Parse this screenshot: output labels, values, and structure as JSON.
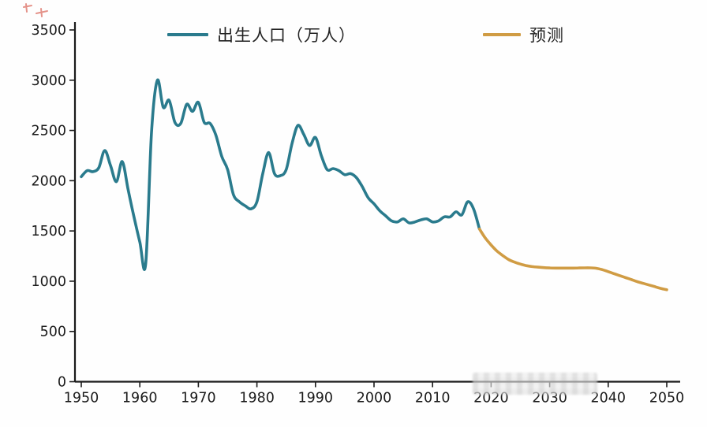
{
  "chart_data": {
    "type": "line",
    "title": "",
    "xlabel": "",
    "ylabel": "",
    "xlim": [
      1950,
      2050
    ],
    "ylim": [
      0,
      3500
    ],
    "x_ticks": [
      1950,
      1960,
      1970,
      1980,
      1990,
      2000,
      2010,
      2020,
      2030,
      2040,
      2050
    ],
    "y_ticks": [
      0,
      500,
      1000,
      1500,
      2000,
      2500,
      3000,
      3500
    ],
    "grid": false,
    "legend_position": "top",
    "series": [
      {
        "name": "出生人口（万人）",
        "color": "#2a7b8d",
        "x": [
          1950,
          1951,
          1952,
          1953,
          1954,
          1955,
          1956,
          1957,
          1958,
          1959,
          1960,
          1961,
          1962,
          1963,
          1964,
          1965,
          1966,
          1967,
          1968,
          1969,
          1970,
          1971,
          1972,
          1973,
          1974,
          1975,
          1976,
          1977,
          1978,
          1979,
          1980,
          1981,
          1982,
          1983,
          1984,
          1985,
          1986,
          1987,
          1988,
          1989,
          1990,
          1991,
          1992,
          1993,
          1994,
          1995,
          1996,
          1997,
          1998,
          1999,
          2000,
          2001,
          2002,
          2003,
          2004,
          2005,
          2006,
          2007,
          2008,
          2009,
          2010,
          2011,
          2012,
          2013,
          2014,
          2015,
          2016,
          2017,
          2018
        ],
        "values": [
          2040,
          2100,
          2090,
          2130,
          2300,
          2150,
          1990,
          2190,
          1910,
          1640,
          1390,
          1170,
          2480,
          3000,
          2730,
          2800,
          2580,
          2570,
          2760,
          2690,
          2780,
          2580,
          2570,
          2450,
          2240,
          2110,
          1860,
          1790,
          1750,
          1720,
          1790,
          2070,
          2280,
          2070,
          2050,
          2110,
          2370,
          2550,
          2460,
          2350,
          2430,
          2250,
          2110,
          2120,
          2100,
          2060,
          2070,
          2030,
          1940,
          1830,
          1770,
          1700,
          1650,
          1600,
          1590,
          1620,
          1580,
          1590,
          1610,
          1620,
          1590,
          1600,
          1640,
          1640,
          1690,
          1660,
          1790,
          1720,
          1520
        ]
      },
      {
        "name": "预测",
        "color": "#d09c44",
        "x": [
          2018,
          2019,
          2020,
          2021,
          2022,
          2023,
          2024,
          2025,
          2026,
          2027,
          2028,
          2029,
          2030,
          2031,
          2032,
          2033,
          2034,
          2035,
          2036,
          2037,
          2038,
          2039,
          2040,
          2041,
          2042,
          2043,
          2044,
          2045,
          2046,
          2047,
          2048,
          2049,
          2050
        ],
        "values": [
          1520,
          1430,
          1360,
          1300,
          1255,
          1215,
          1190,
          1170,
          1155,
          1145,
          1140,
          1135,
          1132,
          1130,
          1130,
          1130,
          1130,
          1132,
          1133,
          1133,
          1128,
          1115,
          1095,
          1075,
          1055,
          1035,
          1015,
          995,
          978,
          962,
          945,
          928,
          915
        ]
      }
    ]
  },
  "colors": {
    "axis": "#1a1a1a",
    "tick_text": "#1b1b1b",
    "historical": "#2a7b8d",
    "forecast": "#d09c44",
    "scribble": "#d03a2a"
  },
  "legend": {
    "birth_label": "出生人口（万人）",
    "forecast_label": "预测"
  }
}
